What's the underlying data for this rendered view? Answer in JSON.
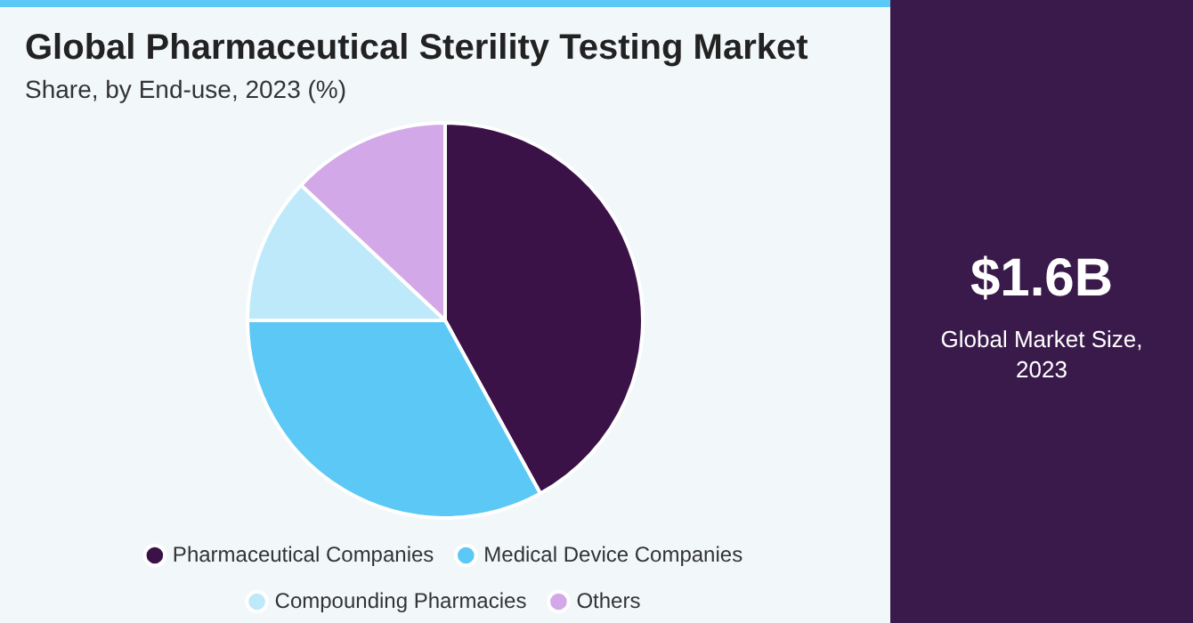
{
  "chart_data": {
    "type": "pie",
    "title": "Global Pharmaceutical Sterility Testing Market",
    "subtitle": "Share, by End-use, 2023 (%)",
    "categories": [
      "Pharmaceutical Companies",
      "Medical Device Companies",
      "Compounding Pharmacies",
      "Others"
    ],
    "values": [
      42,
      33,
      12,
      13
    ],
    "colors": [
      "#3b1248",
      "#5bc8f5",
      "#bde9fa",
      "#d3a8e8"
    ],
    "legend": "bottom",
    "annotations": [
      "$1.6B",
      "Global Market Size, 2023"
    ]
  }
}
